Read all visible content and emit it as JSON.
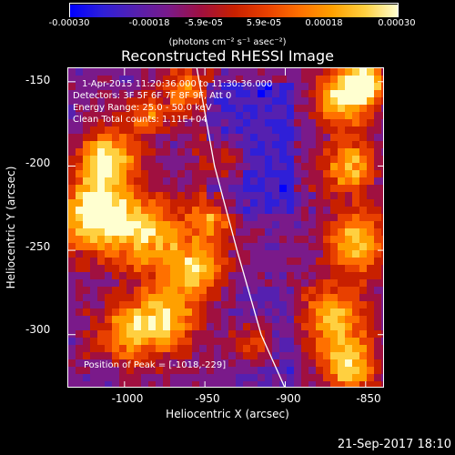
{
  "colorbar": {
    "tick_labels": [
      "-0.00030",
      "-0.00018",
      "-5.9e-05",
      "5.9e-05",
      "0.00018",
      "0.00030"
    ],
    "units_label": "(photons cm⁻² s⁻¹ asec⁻²)",
    "colors": [
      "#0000ff",
      "#2f1fd8",
      "#5520b0",
      "#7a1a8a",
      "#a01040",
      "#c82000",
      "#e84000",
      "#ff7000",
      "#ffa000",
      "#ffd040",
      "#ffffd0"
    ]
  },
  "title": "Reconstructed RHESSI Image",
  "annotations": [
    "1-Apr-2015 11:20:36.000 to 11:30:36.000",
    "Detectors: 3F 5F 6F 7F 8F 9F, Att 0",
    "Energy Range: 25.0 - 50.0 keV",
    "Clean     Total counts: 1.11E+04"
  ],
  "peak_label": "Position of Peak = [-1018,-229]",
  "axes": {
    "x_label": "Heliocentric X (arcsec)",
    "y_label": "Heliocentric Y (arcsec)",
    "x_ticks": [
      "-1000",
      "-950",
      "-900",
      "-850"
    ],
    "y_ticks": [
      "-150",
      "-200",
      "-250",
      "-300"
    ]
  },
  "timestamp": "21-Sep-2017 18:10",
  "chart_data": {
    "type": "heatmap",
    "title": "Reconstructed RHESSI Image",
    "xlabel": "Heliocentric X (arcsec)",
    "ylabel": "Heliocentric Y (arcsec)",
    "xlim": [
      -1035,
      -838
    ],
    "ylim": [
      -332,
      -142
    ],
    "x_ticks": [
      -1000,
      -950,
      -900,
      -850
    ],
    "y_ticks": [
      -150,
      -200,
      -250,
      -300
    ],
    "colorbar_range": [
      -0.0003,
      0.0003
    ],
    "peak": [
      -1018,
      -229
    ],
    "limb_curve": [
      [
        -955,
        -142
      ],
      [
        -944,
        -200
      ],
      [
        -930,
        -250
      ],
      [
        -915,
        -300
      ],
      [
        -900,
        -332
      ]
    ]
  }
}
